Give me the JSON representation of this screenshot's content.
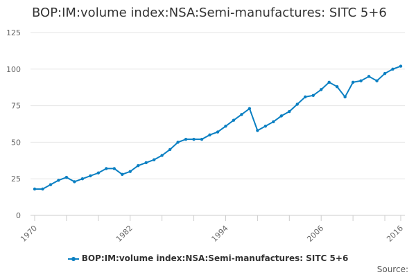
{
  "chart_data": {
    "type": "line",
    "title": "BOP:IM:volume index:NSA:Semi-manufactures: SITC 5+6",
    "x": [
      1970,
      1971,
      1972,
      1973,
      1974,
      1975,
      1976,
      1977,
      1978,
      1979,
      1980,
      1981,
      1982,
      1983,
      1984,
      1985,
      1986,
      1987,
      1988,
      1989,
      1990,
      1991,
      1992,
      1993,
      1994,
      1995,
      1996,
      1997,
      1998,
      1999,
      2000,
      2001,
      2002,
      2003,
      2004,
      2005,
      2006,
      2007,
      2008,
      2009,
      2010,
      2011,
      2012,
      2013,
      2014,
      2015,
      2016
    ],
    "series": [
      {
        "name": "BOP:IM:volume index:NSA:Semi-manufactures: SITC 5+6",
        "values": [
          18,
          18,
          21,
          24,
          26,
          23,
          25,
          27,
          29,
          32,
          32,
          28,
          30,
          34,
          36,
          38,
          41,
          45,
          50,
          52,
          52,
          52,
          55,
          57,
          61,
          65,
          69,
          73,
          58,
          61,
          64,
          68,
          71,
          76,
          81,
          82,
          86,
          91,
          88,
          81,
          91,
          92,
          95,
          92,
          97,
          100,
          102
        ],
        "color": "#0a7fc2"
      }
    ],
    "xticks": [
      "1970",
      "1982",
      "1994",
      "2006",
      "2016"
    ],
    "yticks": [
      "0",
      "25",
      "50",
      "75",
      "100",
      "125"
    ],
    "ylim": [
      0,
      125
    ],
    "xlim": [
      1970,
      2016
    ],
    "grid": "horizontal",
    "legend": "bottom",
    "source_label": "Source:"
  }
}
